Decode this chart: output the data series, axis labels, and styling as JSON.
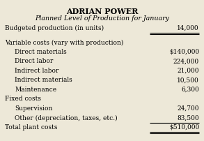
{
  "title": "ADRIAN POWER",
  "subtitle": "Planned Level of Production for January",
  "bg_color": "#ede8d8",
  "rows": [
    {
      "label": "Budgeted production (in units)",
      "value": "14,000",
      "indent": 0,
      "single_underline_above": false,
      "double_underline_below": true,
      "space_above": false
    },
    {
      "label": "",
      "value": "",
      "indent": 0,
      "single_underline_above": false,
      "double_underline_below": false,
      "space_above": false
    },
    {
      "label": "Variable costs (vary with production)",
      "value": "",
      "indent": 0,
      "single_underline_above": false,
      "double_underline_below": false,
      "space_above": false
    },
    {
      "label": "Direct materials",
      "value": "$140,000",
      "indent": 1,
      "single_underline_above": false,
      "double_underline_below": false,
      "space_above": false
    },
    {
      "label": "Direct labor",
      "value": "224,000",
      "indent": 1,
      "single_underline_above": false,
      "double_underline_below": false,
      "space_above": false
    },
    {
      "label": "Indirect labor",
      "value": "21,000",
      "indent": 1,
      "single_underline_above": false,
      "double_underline_below": false,
      "space_above": false
    },
    {
      "label": "Indirect materials",
      "value": "10,500",
      "indent": 1,
      "single_underline_above": false,
      "double_underline_below": false,
      "space_above": false
    },
    {
      "label": "Maintenance",
      "value": "6,300",
      "indent": 1,
      "single_underline_above": false,
      "double_underline_below": false,
      "space_above": false
    },
    {
      "label": "Fixed costs",
      "value": "",
      "indent": 0,
      "single_underline_above": false,
      "double_underline_below": false,
      "space_above": false
    },
    {
      "label": "Supervision",
      "value": "24,700",
      "indent": 1,
      "single_underline_above": false,
      "double_underline_below": false,
      "space_above": false
    },
    {
      "label": "Other (depreciation, taxes, etc.)",
      "value": "83,500",
      "indent": 1,
      "single_underline_above": false,
      "double_underline_below": false,
      "space_above": false
    },
    {
      "label": "Total plant costs",
      "value": "$510,000",
      "indent": 0,
      "single_underline_above": true,
      "double_underline_below": true,
      "space_above": false
    }
  ],
  "font_size_title": 8.0,
  "font_size_subtitle": 6.8,
  "font_size_body": 6.5
}
